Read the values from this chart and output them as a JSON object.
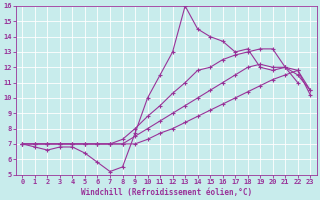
{
  "xlabel": "Windchill (Refroidissement éolien,°C)",
  "bg_color": "#c8ecec",
  "line_color": "#993399",
  "grid_color": "#ffffff",
  "xlim": [
    -0.5,
    23.5
  ],
  "ylim": [
    5,
    16
  ],
  "xticks": [
    0,
    1,
    2,
    3,
    4,
    5,
    6,
    7,
    8,
    9,
    10,
    11,
    12,
    13,
    14,
    15,
    16,
    17,
    18,
    19,
    20,
    21,
    22,
    23
  ],
  "yticks": [
    5,
    6,
    7,
    8,
    9,
    10,
    11,
    12,
    13,
    14,
    15,
    16
  ],
  "line1_x": [
    0,
    1,
    2,
    3,
    4,
    5,
    6,
    7,
    8,
    9,
    10,
    11,
    12,
    13,
    14,
    15,
    16,
    17,
    18,
    19,
    20,
    21,
    22
  ],
  "line1_y": [
    7.0,
    6.8,
    6.6,
    6.8,
    6.8,
    6.4,
    5.8,
    5.2,
    5.5,
    7.7,
    10.0,
    11.5,
    13.0,
    16.0,
    14.5,
    14.0,
    13.7,
    13.0,
    13.2,
    12.0,
    11.8,
    12.0,
    11.0
  ],
  "line2_x": [
    0,
    1,
    2,
    3,
    4,
    5,
    6,
    7,
    8,
    9,
    10,
    11,
    12,
    13,
    14,
    15,
    16,
    17,
    18,
    19,
    20,
    21,
    22,
    23
  ],
  "line2_y": [
    7.0,
    7.0,
    7.0,
    7.0,
    7.0,
    7.0,
    7.0,
    7.0,
    7.3,
    8.0,
    8.8,
    9.5,
    10.3,
    11.0,
    11.8,
    12.0,
    12.5,
    12.8,
    13.0,
    13.2,
    13.2,
    12.0,
    11.8,
    10.5
  ],
  "line3_x": [
    0,
    1,
    2,
    3,
    4,
    5,
    6,
    7,
    8,
    9,
    10,
    11,
    12,
    13,
    14,
    15,
    16,
    17,
    18,
    19,
    20,
    21,
    22,
    23
  ],
  "line3_y": [
    7.0,
    7.0,
    7.0,
    7.0,
    7.0,
    7.0,
    7.0,
    7.0,
    7.0,
    7.5,
    8.0,
    8.5,
    9.0,
    9.5,
    10.0,
    10.5,
    11.0,
    11.5,
    12.0,
    12.2,
    12.0,
    12.0,
    11.5,
    10.5
  ],
  "line4_x": [
    0,
    1,
    2,
    3,
    4,
    5,
    6,
    7,
    8,
    9,
    10,
    11,
    12,
    13,
    14,
    15,
    16,
    17,
    18,
    19,
    20,
    21,
    22,
    23
  ],
  "line4_y": [
    7.0,
    7.0,
    7.0,
    7.0,
    7.0,
    7.0,
    7.0,
    7.0,
    7.0,
    7.0,
    7.3,
    7.7,
    8.0,
    8.4,
    8.8,
    9.2,
    9.6,
    10.0,
    10.4,
    10.8,
    11.2,
    11.5,
    11.8,
    10.2
  ],
  "markersize": 3,
  "linewidth": 0.8
}
